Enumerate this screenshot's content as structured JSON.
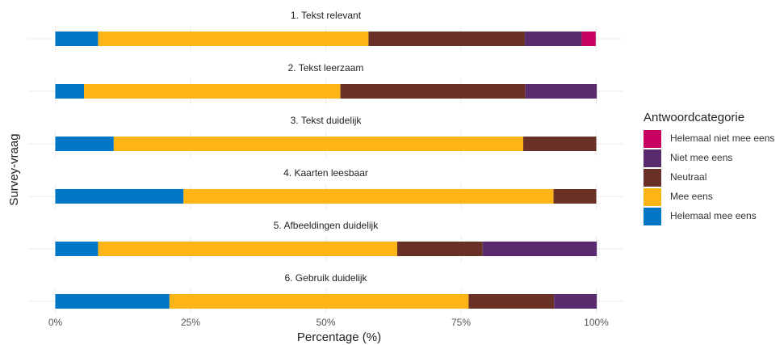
{
  "chart_data": {
    "type": "bar",
    "orientation": "horizontal",
    "stacked": true,
    "categories": [
      "1. Tekst relevant",
      "2. Tekst leerzaam",
      "3. Tekst duidelijk",
      "4. Kaarten leesbaar",
      "5. Afbeeldingen duidelijk",
      "6. Gebruik duidelijk"
    ],
    "series": [
      {
        "name": "Helemaal niet mee eens",
        "color": "#c8005f",
        "values": [
          2.6,
          0,
          0,
          0,
          0,
          0
        ]
      },
      {
        "name": "Niet mee eens",
        "color": "#5a2b6e",
        "values": [
          10.5,
          13.2,
          0,
          0,
          21.1,
          7.9
        ]
      },
      {
        "name": "Neutraal",
        "color": "#6a3227",
        "values": [
          28.9,
          34.2,
          13.5,
          7.9,
          15.8,
          15.8
        ]
      },
      {
        "name": "Mee eens",
        "color": "#fdb515",
        "values": [
          50.0,
          47.4,
          75.7,
          68.4,
          55.3,
          55.3
        ]
      },
      {
        "name": "Helemaal mee eens",
        "color": "#0077c6",
        "values": [
          7.9,
          5.3,
          10.8,
          23.7,
          7.9,
          21.1
        ]
      }
    ],
    "xlabel": "Percentage (%)",
    "ylabel": "Survey-vraag",
    "legend_title": "Antwoordcategorie",
    "legend": "right",
    "xlim": [
      -5,
      105
    ],
    "xticks": [
      {
        "value": 0,
        "label": "0%"
      },
      {
        "value": 25,
        "label": "25%"
      },
      {
        "value": 50,
        "label": "50%"
      },
      {
        "value": 75,
        "label": "75%"
      },
      {
        "value": 100,
        "label": "100%"
      }
    ],
    "grid": true
  }
}
